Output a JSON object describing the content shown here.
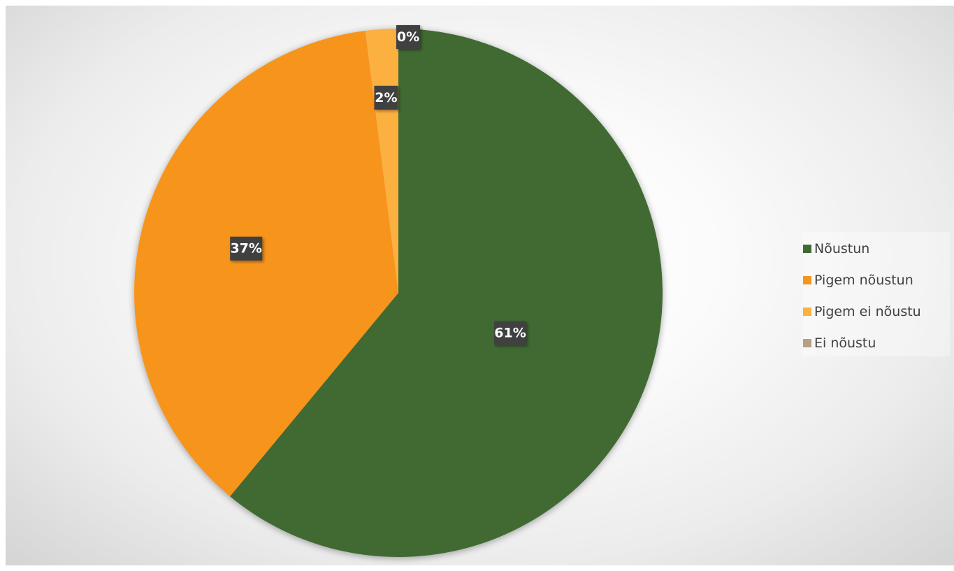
{
  "chart_data": {
    "type": "pie",
    "title": "",
    "slices": [
      {
        "name": "Nõustun",
        "value": 61,
        "label": "61%",
        "color": "#3f6b33"
      },
      {
        "name": "Pigem nõustun",
        "value": 37,
        "label": "37%",
        "color": "#f7941d"
      },
      {
        "name": "Pigem ei nõustu",
        "value": 2,
        "label": "2%",
        "color": "#fbb040"
      },
      {
        "name": "Ei nõustu",
        "value": 0,
        "label": "0%",
        "color": "#b5a085"
      }
    ],
    "legend_position": "right",
    "data_labels": true
  }
}
